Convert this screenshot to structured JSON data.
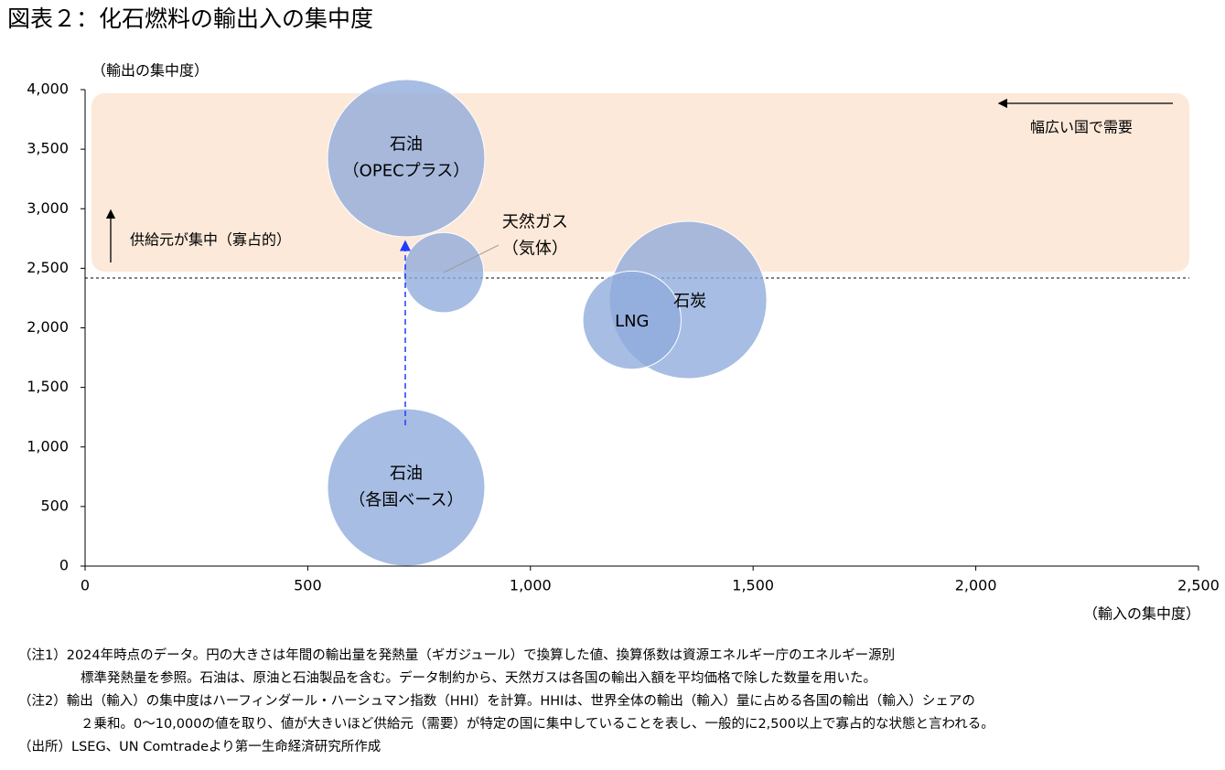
{
  "chart_data": {
    "type": "bubble",
    "title": "図表２：化石燃料の輸出入の集中度",
    "y_label": "（輸出の集中度）",
    "x_label": "（輸入の集中度）",
    "xlim": [
      0,
      2500
    ],
    "ylim": [
      0,
      4000
    ],
    "xticks": [
      0,
      500,
      {
        "value": 1000,
        "label": "1,000"
      },
      {
        "value": 1500,
        "label": "1,500"
      },
      {
        "value": 2000,
        "label": "2,000"
      },
      {
        "value": 2500,
        "label": "2,500"
      }
    ],
    "yticks": [
      0,
      500,
      {
        "value": 1000,
        "label": "1,000"
      },
      {
        "value": 1500,
        "label": "1,500"
      },
      {
        "value": 2000,
        "label": "2,000"
      },
      {
        "value": 2500,
        "label": "2,500"
      },
      {
        "value": 3000,
        "label": "3,000"
      },
      {
        "value": 3500,
        "label": "3,500"
      },
      {
        "value": 4000,
        "label": "4,000"
      }
    ],
    "color": "#8eaadb",
    "points": [
      {
        "label": [
          "石油",
          "（OPECプラス）"
        ],
        "x": 721,
        "y": 3424,
        "size": 100
      },
      {
        "label": [
          "天然ガス",
          "（気体）"
        ],
        "x": 805,
        "y": 2464,
        "size": 26
      },
      {
        "label": [
          "石炭"
        ],
        "x": 1354,
        "y": 2234,
        "size": 100
      },
      {
        "label": [
          "LNG"
        ],
        "x": 1228,
        "y": 2065,
        "size": 39
      },
      {
        "label": [
          "石油",
          "（各国ベース）"
        ],
        "x": 721,
        "y": 660,
        "size": 100
      }
    ],
    "annotations": [
      "供給元が集中（寡占的）",
      "幅広い国で需要"
    ],
    "notes": [
      "（注1）2024年時点のデータ。円の大きさは年間の輸出量を発熱量（ギガジュール）で換算した値、換算係数は資源エネルギー庁のエネルギー源別",
      "標準発熱量を参照。石油は、原油と石油製品を含む。データ制約から、天然ガスは各国の輸出入額を平均価格で除した数量を用いた。",
      "（注2）輸出（輸入）の集中度はハーフィンダール・ハーシュマン指数（HHI）を計算。HHIは、世界全体の輸出（輸入）量に占める各国の輸出（輸入）シェアの",
      "２乗和。0～10,000の値を取り、値が大きいほど供給元（需要）が特定の国に集中していることを表し、一般的に2,500以上で寡占的な状態と言われる。",
      "（出所）LSEG、UN Comtradeより第一生命経済研究所作成"
    ]
  }
}
